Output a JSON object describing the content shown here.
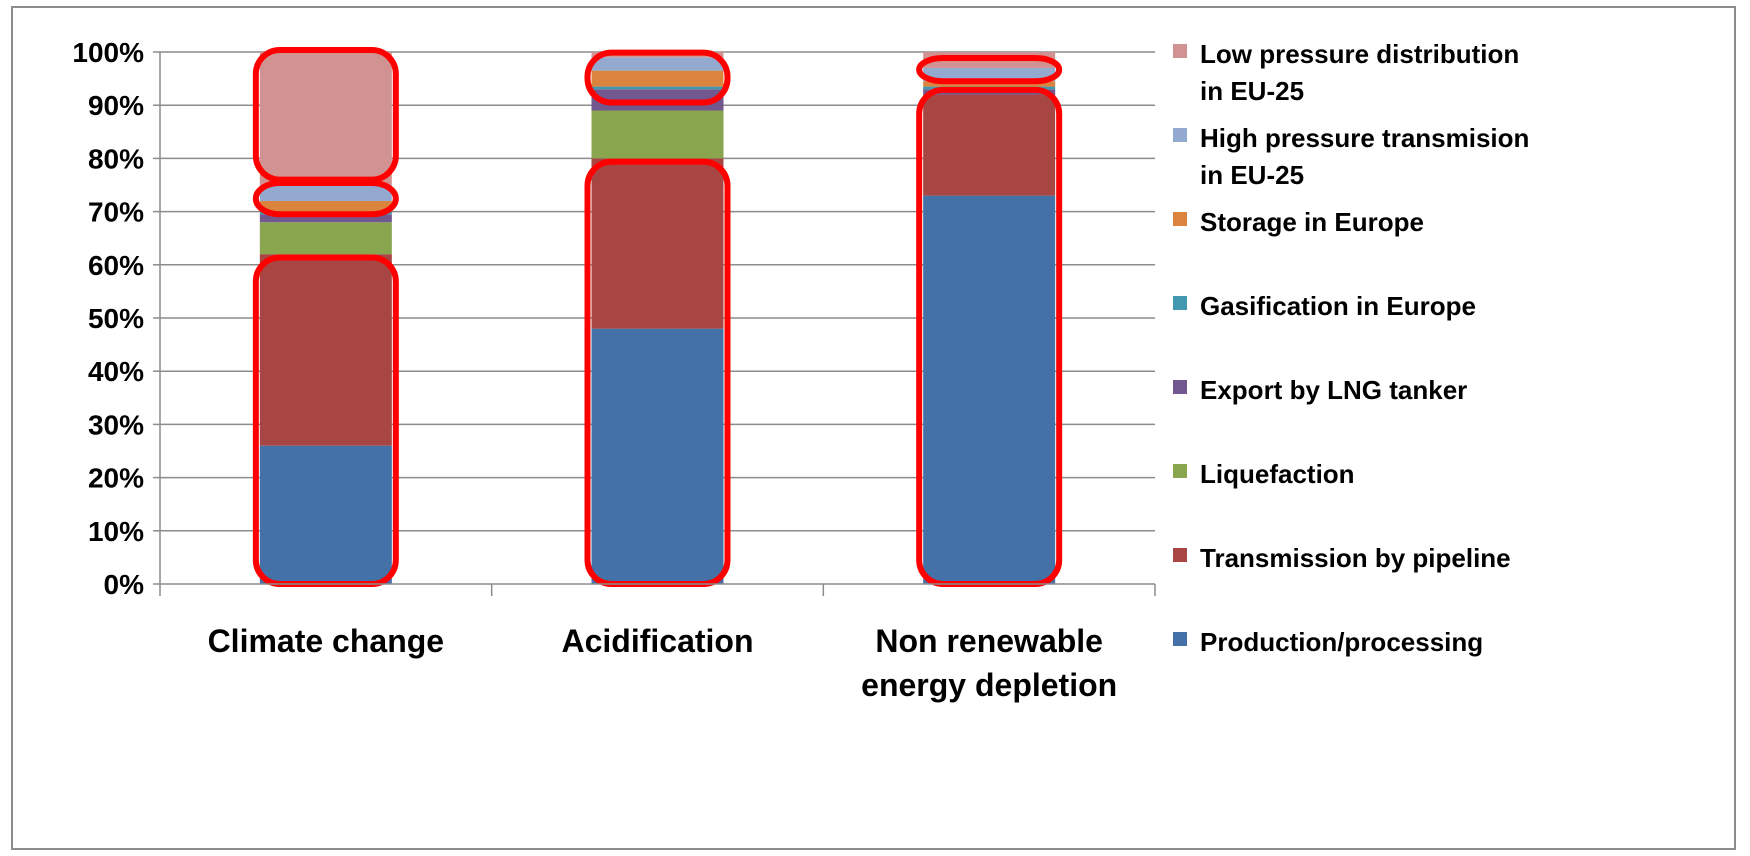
{
  "chart_data": {
    "type": "bar",
    "stacked": true,
    "categories": [
      "Climate change",
      "Acidification",
      "Non renewable energy depletion"
    ],
    "category_lines": [
      [
        "Climate change"
      ],
      [
        "Acidification"
      ],
      [
        "Non renewable",
        "energy depletion"
      ]
    ],
    "ylim": [
      0,
      100
    ],
    "yticks": [
      "0%",
      "10%",
      "20%",
      "30%",
      "40%",
      "50%",
      "60%",
      "70%",
      "80%",
      "90%",
      "100%"
    ],
    "grid": true,
    "legend_position": "right",
    "series": [
      {
        "name": "Production/processing",
        "color": "#4472a8",
        "values": [
          26,
          48,
          73
        ]
      },
      {
        "name": "Transmission by pipeline",
        "color": "#a84644",
        "values": [
          36,
          32,
          19
        ]
      },
      {
        "name": "Liquefaction",
        "color": "#89a54e",
        "values": [
          6,
          9,
          0
        ]
      },
      {
        "name": "Export by LNG tanker",
        "color": "#71588f",
        "values": [
          1.5,
          4,
          1
        ]
      },
      {
        "name": "Gasification in Europe",
        "color": "#4198af",
        "values": [
          0.5,
          0.5,
          0.5
        ]
      },
      {
        "name": "Storage in Europe",
        "color": "#db843d",
        "values": [
          2,
          3,
          1
        ]
      },
      {
        "name": "High pressure transmision in EU-25",
        "color": "#93a9cf",
        "values": [
          3,
          2.5,
          2.5
        ]
      },
      {
        "name": "Low pressure distribution in EU-25",
        "color": "#d19392",
        "values": [
          25,
          1,
          3
        ]
      }
    ],
    "legend_lines": [
      [
        "Low pressure distribution",
        "in EU-25"
      ],
      [
        "High pressure transmision",
        "in EU-25"
      ],
      [
        "Storage in Europe"
      ],
      [
        "Gasification in Europe"
      ],
      [
        "Export by LNG tanker"
      ],
      [
        "Liquefaction"
      ],
      [
        "Transmission by pipeline"
      ],
      [
        "Production/processing"
      ]
    ],
    "highlight_color": "#ff0000",
    "highlights": [
      {
        "category": 0,
        "from": 0,
        "to": 61
      },
      {
        "category": 0,
        "from": 69.5,
        "to": 75
      },
      {
        "category": 0,
        "from": 76,
        "to": 100
      },
      {
        "category": 1,
        "from": 0,
        "to": 79
      },
      {
        "category": 1,
        "from": 90.5,
        "to": 99.5
      },
      {
        "category": 2,
        "from": 0,
        "to": 92.5
      },
      {
        "category": 2,
        "from": 94.5,
        "to": 98.5
      }
    ]
  }
}
